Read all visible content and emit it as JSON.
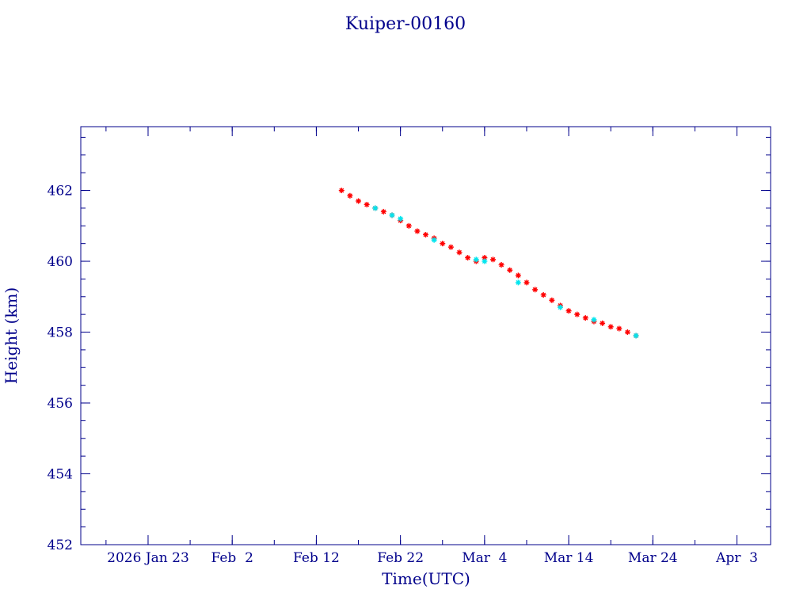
{
  "chart_data": {
    "type": "scatter",
    "title": "Kuiper-00160",
    "xlabel": "Time(UTC)",
    "ylabel": "Height (km)",
    "x_axis_type": "date",
    "xlim": [
      "2026-01-15",
      "2026-04-07"
    ],
    "ylim": [
      452,
      463.8
    ],
    "x_ticks": [
      {
        "date": "2026-01-23",
        "label": "2026 Jan 23"
      },
      {
        "date": "2026-02-02",
        "label": "Feb  2"
      },
      {
        "date": "2026-02-12",
        "label": "Feb 12"
      },
      {
        "date": "2026-02-22",
        "label": "Feb 22"
      },
      {
        "date": "2026-03-04",
        "label": "Mar  4"
      },
      {
        "date": "2026-03-14",
        "label": "Mar 14"
      },
      {
        "date": "2026-03-24",
        "label": "Mar 24"
      },
      {
        "date": "2026-04-03",
        "label": "Apr  3"
      }
    ],
    "y_ticks": [
      452,
      454,
      456,
      458,
      460,
      462
    ],
    "grid": false,
    "series": [
      {
        "color": "#ff0000",
        "marker": "asterisk",
        "points": [
          [
            "2026-02-15",
            462.0
          ],
          [
            "2026-02-16",
            461.85
          ],
          [
            "2026-02-17",
            461.7
          ],
          [
            "2026-02-18",
            461.6
          ],
          [
            "2026-02-19",
            461.5
          ],
          [
            "2026-02-20",
            461.4
          ],
          [
            "2026-02-21",
            461.3
          ],
          [
            "2026-02-22",
            461.15
          ],
          [
            "2026-02-23",
            461.0
          ],
          [
            "2026-02-24",
            460.85
          ],
          [
            "2026-02-25",
            460.75
          ],
          [
            "2026-02-26",
            460.65
          ],
          [
            "2026-02-27",
            460.5
          ],
          [
            "2026-02-28",
            460.4
          ],
          [
            "2026-03-01",
            460.25
          ],
          [
            "2026-03-02",
            460.1
          ],
          [
            "2026-03-03",
            460.0
          ],
          [
            "2026-03-04",
            460.1
          ],
          [
            "2026-03-05",
            460.05
          ],
          [
            "2026-03-06",
            459.9
          ],
          [
            "2026-03-07",
            459.75
          ],
          [
            "2026-03-08",
            459.6
          ],
          [
            "2026-03-09",
            459.4
          ],
          [
            "2026-03-10",
            459.2
          ],
          [
            "2026-03-11",
            459.05
          ],
          [
            "2026-03-12",
            458.9
          ],
          [
            "2026-03-13",
            458.75
          ],
          [
            "2026-03-14",
            458.6
          ],
          [
            "2026-03-15",
            458.5
          ],
          [
            "2026-03-16",
            458.4
          ],
          [
            "2026-03-17",
            458.3
          ],
          [
            "2026-03-18",
            458.25
          ],
          [
            "2026-03-19",
            458.15
          ],
          [
            "2026-03-20",
            458.1
          ],
          [
            "2026-03-21",
            458.0
          ],
          [
            "2026-03-22",
            457.9
          ]
        ]
      },
      {
        "color": "#00e5ee",
        "marker": "asterisk",
        "points": [
          [
            "2026-02-19",
            461.5
          ],
          [
            "2026-02-21",
            461.3
          ],
          [
            "2026-02-22",
            461.2
          ],
          [
            "2026-02-26",
            460.6
          ],
          [
            "2026-03-03",
            460.05
          ],
          [
            "2026-03-04",
            460.0
          ],
          [
            "2026-03-08",
            459.4
          ],
          [
            "2026-03-13",
            458.7
          ],
          [
            "2026-03-17",
            458.35
          ],
          [
            "2026-03-22",
            457.9
          ]
        ]
      }
    ]
  }
}
